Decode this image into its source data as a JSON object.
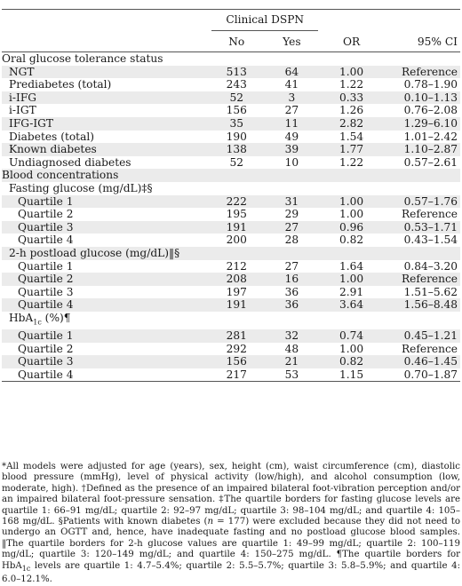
{
  "header": {
    "group_label": "Clinical DSPN",
    "col_no": "No",
    "col_yes": "Yes",
    "col_or": "OR",
    "col_ci": "95% CI"
  },
  "rows": [
    {
      "label": "Oral glucose tolerance status",
      "no": "",
      "yes": "",
      "or": "",
      "ci": "",
      "level": 0,
      "shaded": false
    },
    {
      "label": "NGT",
      "no": "513",
      "yes": "64",
      "or": "1.00",
      "ci": "Reference",
      "level": 1,
      "shaded": true
    },
    {
      "label": "Prediabetes (total)",
      "no": "243",
      "yes": "41",
      "or": "1.22",
      "ci": "0.78–1.90",
      "level": 1,
      "shaded": false
    },
    {
      "label": "i-IFG",
      "no": "52",
      "yes": "3",
      "or": "0.33",
      "ci": "0.10–1.13",
      "level": 1,
      "shaded": true
    },
    {
      "label": "i-IGT",
      "no": "156",
      "yes": "27",
      "or": "1.26",
      "ci": "0.76–2.08",
      "level": 1,
      "shaded": false
    },
    {
      "label": "IFG-IGT",
      "no": "35",
      "yes": "11",
      "or": "2.82",
      "ci": "1.29–6.10",
      "level": 1,
      "shaded": true
    },
    {
      "label": "Diabetes (total)",
      "no": "190",
      "yes": "49",
      "or": "1.54",
      "ci": "1.01–2.42",
      "level": 1,
      "shaded": false
    },
    {
      "label": "Known diabetes",
      "no": "138",
      "yes": "39",
      "or": "1.77",
      "ci": "1.10–2.87",
      "level": 1,
      "shaded": true
    },
    {
      "label": "Undiagnosed diabetes",
      "no": "52",
      "yes": "10",
      "or": "1.22",
      "ci": "0.57–2.61",
      "level": 1,
      "shaded": false
    },
    {
      "label": "Blood concentrations",
      "no": "",
      "yes": "",
      "or": "",
      "ci": "",
      "level": 0,
      "shaded": true
    },
    {
      "label": "Fasting glucose (mg/dL)‡§",
      "no": "",
      "yes": "",
      "or": "",
      "ci": "",
      "level": 1,
      "shaded": false
    },
    {
      "label": "Quartile 1",
      "no": "222",
      "yes": "31",
      "or": "1.00",
      "ci": "0.57–1.76",
      "level": 2,
      "shaded": true
    },
    {
      "label": "Quartile 2",
      "no": "195",
      "yes": "29",
      "or": "1.00",
      "ci": "Reference",
      "level": 2,
      "shaded": false
    },
    {
      "label": "Quartile 3",
      "no": "191",
      "yes": "27",
      "or": "0.96",
      "ci": "0.53–1.71",
      "level": 2,
      "shaded": true
    },
    {
      "label": "Quartile 4",
      "no": "200",
      "yes": "28",
      "or": "0.82",
      "ci": "0.43–1.54",
      "level": 2,
      "shaded": false
    },
    {
      "label": "2-h postload glucose (mg/dL)‖§",
      "no": "",
      "yes": "",
      "or": "",
      "ci": "",
      "level": 1,
      "shaded": true
    },
    {
      "label": "Quartile 1",
      "no": "212",
      "yes": "27",
      "or": "1.64",
      "ci": "0.84–3.20",
      "level": 2,
      "shaded": false
    },
    {
      "label": "Quartile 2",
      "no": "208",
      "yes": "16",
      "or": "1.00",
      "ci": "Reference",
      "level": 2,
      "shaded": true
    },
    {
      "label": "Quartile 3",
      "no": "197",
      "yes": "36",
      "or": "2.91",
      "ci": "1.51–5.62",
      "level": 2,
      "shaded": false
    },
    {
      "label": "Quartile 4",
      "no": "191",
      "yes": "36",
      "or": "3.64",
      "ci": "1.56–8.48",
      "level": 2,
      "shaded": true
    },
    {
      "label": "HbA",
      "sub": "1c",
      "suffix": " (%)¶",
      "no": "",
      "yes": "",
      "or": "",
      "ci": "",
      "level": 1,
      "shaded": false
    },
    {
      "label": "Quartile 1",
      "no": "281",
      "yes": "32",
      "or": "0.74",
      "ci": "0.45–1.21",
      "level": 2,
      "shaded": true
    },
    {
      "label": "Quartile 2",
      "no": "292",
      "yes": "48",
      "or": "1.00",
      "ci": "Reference",
      "level": 2,
      "shaded": false
    },
    {
      "label": "Quartile 3",
      "no": "156",
      "yes": "21",
      "or": "0.82",
      "ci": "0.46–1.45",
      "level": 2,
      "shaded": true
    },
    {
      "label": "Quartile 4",
      "no": "217",
      "yes": "53",
      "or": "1.15",
      "ci": "0.70–1.87",
      "level": 2,
      "shaded": false
    }
  ],
  "footnotes": {
    "star": "*All models were adjusted for age (years), sex, height (cm), waist circumference (cm), diastolic blood pressure (mmHg), level of physical activity (low/high), and alcohol consumption (low, moderate, high).",
    "dagger": "†Defined as the presence of an impaired bilateral foot-vibration perception and/or an impaired bilateral foot-pressure sensation.",
    "ddagger": "‡The quartile borders for fasting glucose levels are quartile 1: 66–91 mg/dL; quartile 2: 92–97 mg/dL; quartile 3: 98–104 mg/dL; and quartile 4: 105–168 mg/dL.",
    "section_pre": "§Patients with known diabetes (",
    "section_n": "n",
    "section_post": " = 177) were excluded because they did not need to undergo an OGTT and, hence, have inadequate fasting and no postload glucose blood samples.",
    "parallel": "‖The quartile borders for 2-h glucose values are quartile 1: 49–99 mg/dL; quartile 2: 100–119 mg/dL; quartile 3: 120–149 mg/dL; and quartile 4: 150–275 mg/dL.",
    "pilcrow_pre": "¶The quartile borders for HbA",
    "pilcrow_sub": "1c",
    "pilcrow_post": " levels are quartile 1: 4.7–5.4%; quartile 2: 5.5–5.7%; quartile 3: 5.8–5.9%; and quartile 4: 6.0–12.1%."
  },
  "colors": {
    "shade": "#ebebeb",
    "rule": "#555555",
    "text": "#1a1a1a"
  }
}
